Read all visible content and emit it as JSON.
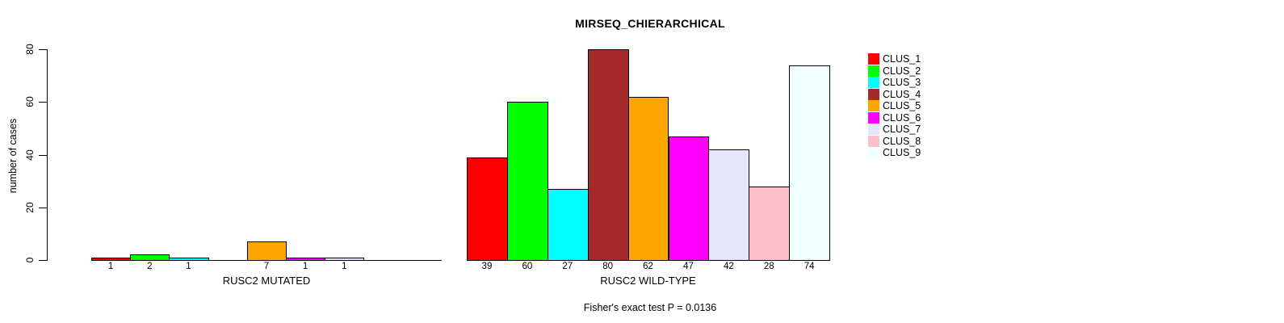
{
  "title": "MIRSEQ_CHIERARCHICAL",
  "footer": "Fisher's exact test P = 0.0136",
  "chart_data": {
    "type": "bar",
    "title": "MIRSEQ_CHIERARCHICAL",
    "ylabel": "number of cases",
    "ylim": [
      0,
      80
    ],
    "yticks": [
      0,
      20,
      40,
      60,
      80
    ],
    "grid": false,
    "legend_position": "right",
    "legend": [
      "CLUS_1",
      "CLUS_2",
      "CLUS_3",
      "CLUS_4",
      "CLUS_5",
      "CLUS_6",
      "CLUS_7",
      "CLUS_8",
      "CLUS_9"
    ],
    "colors": [
      "#FF0000",
      "#00FF00",
      "#00FFFF",
      "#A52A2A",
      "#FFA500",
      "#FF00FF",
      "#E6E6FA",
      "#FFC0CB",
      "#F0FFFF"
    ],
    "groups": [
      {
        "label": "RUSC2 MUTATED",
        "values": [
          1,
          2,
          1,
          0,
          7,
          1,
          1,
          0,
          0
        ]
      },
      {
        "label": "RUSC2 WILD-TYPE",
        "values": [
          39,
          60,
          27,
          80,
          62,
          47,
          42,
          28,
          74
        ]
      }
    ],
    "annotation": "Fisher's exact test P = 0.0136"
  }
}
